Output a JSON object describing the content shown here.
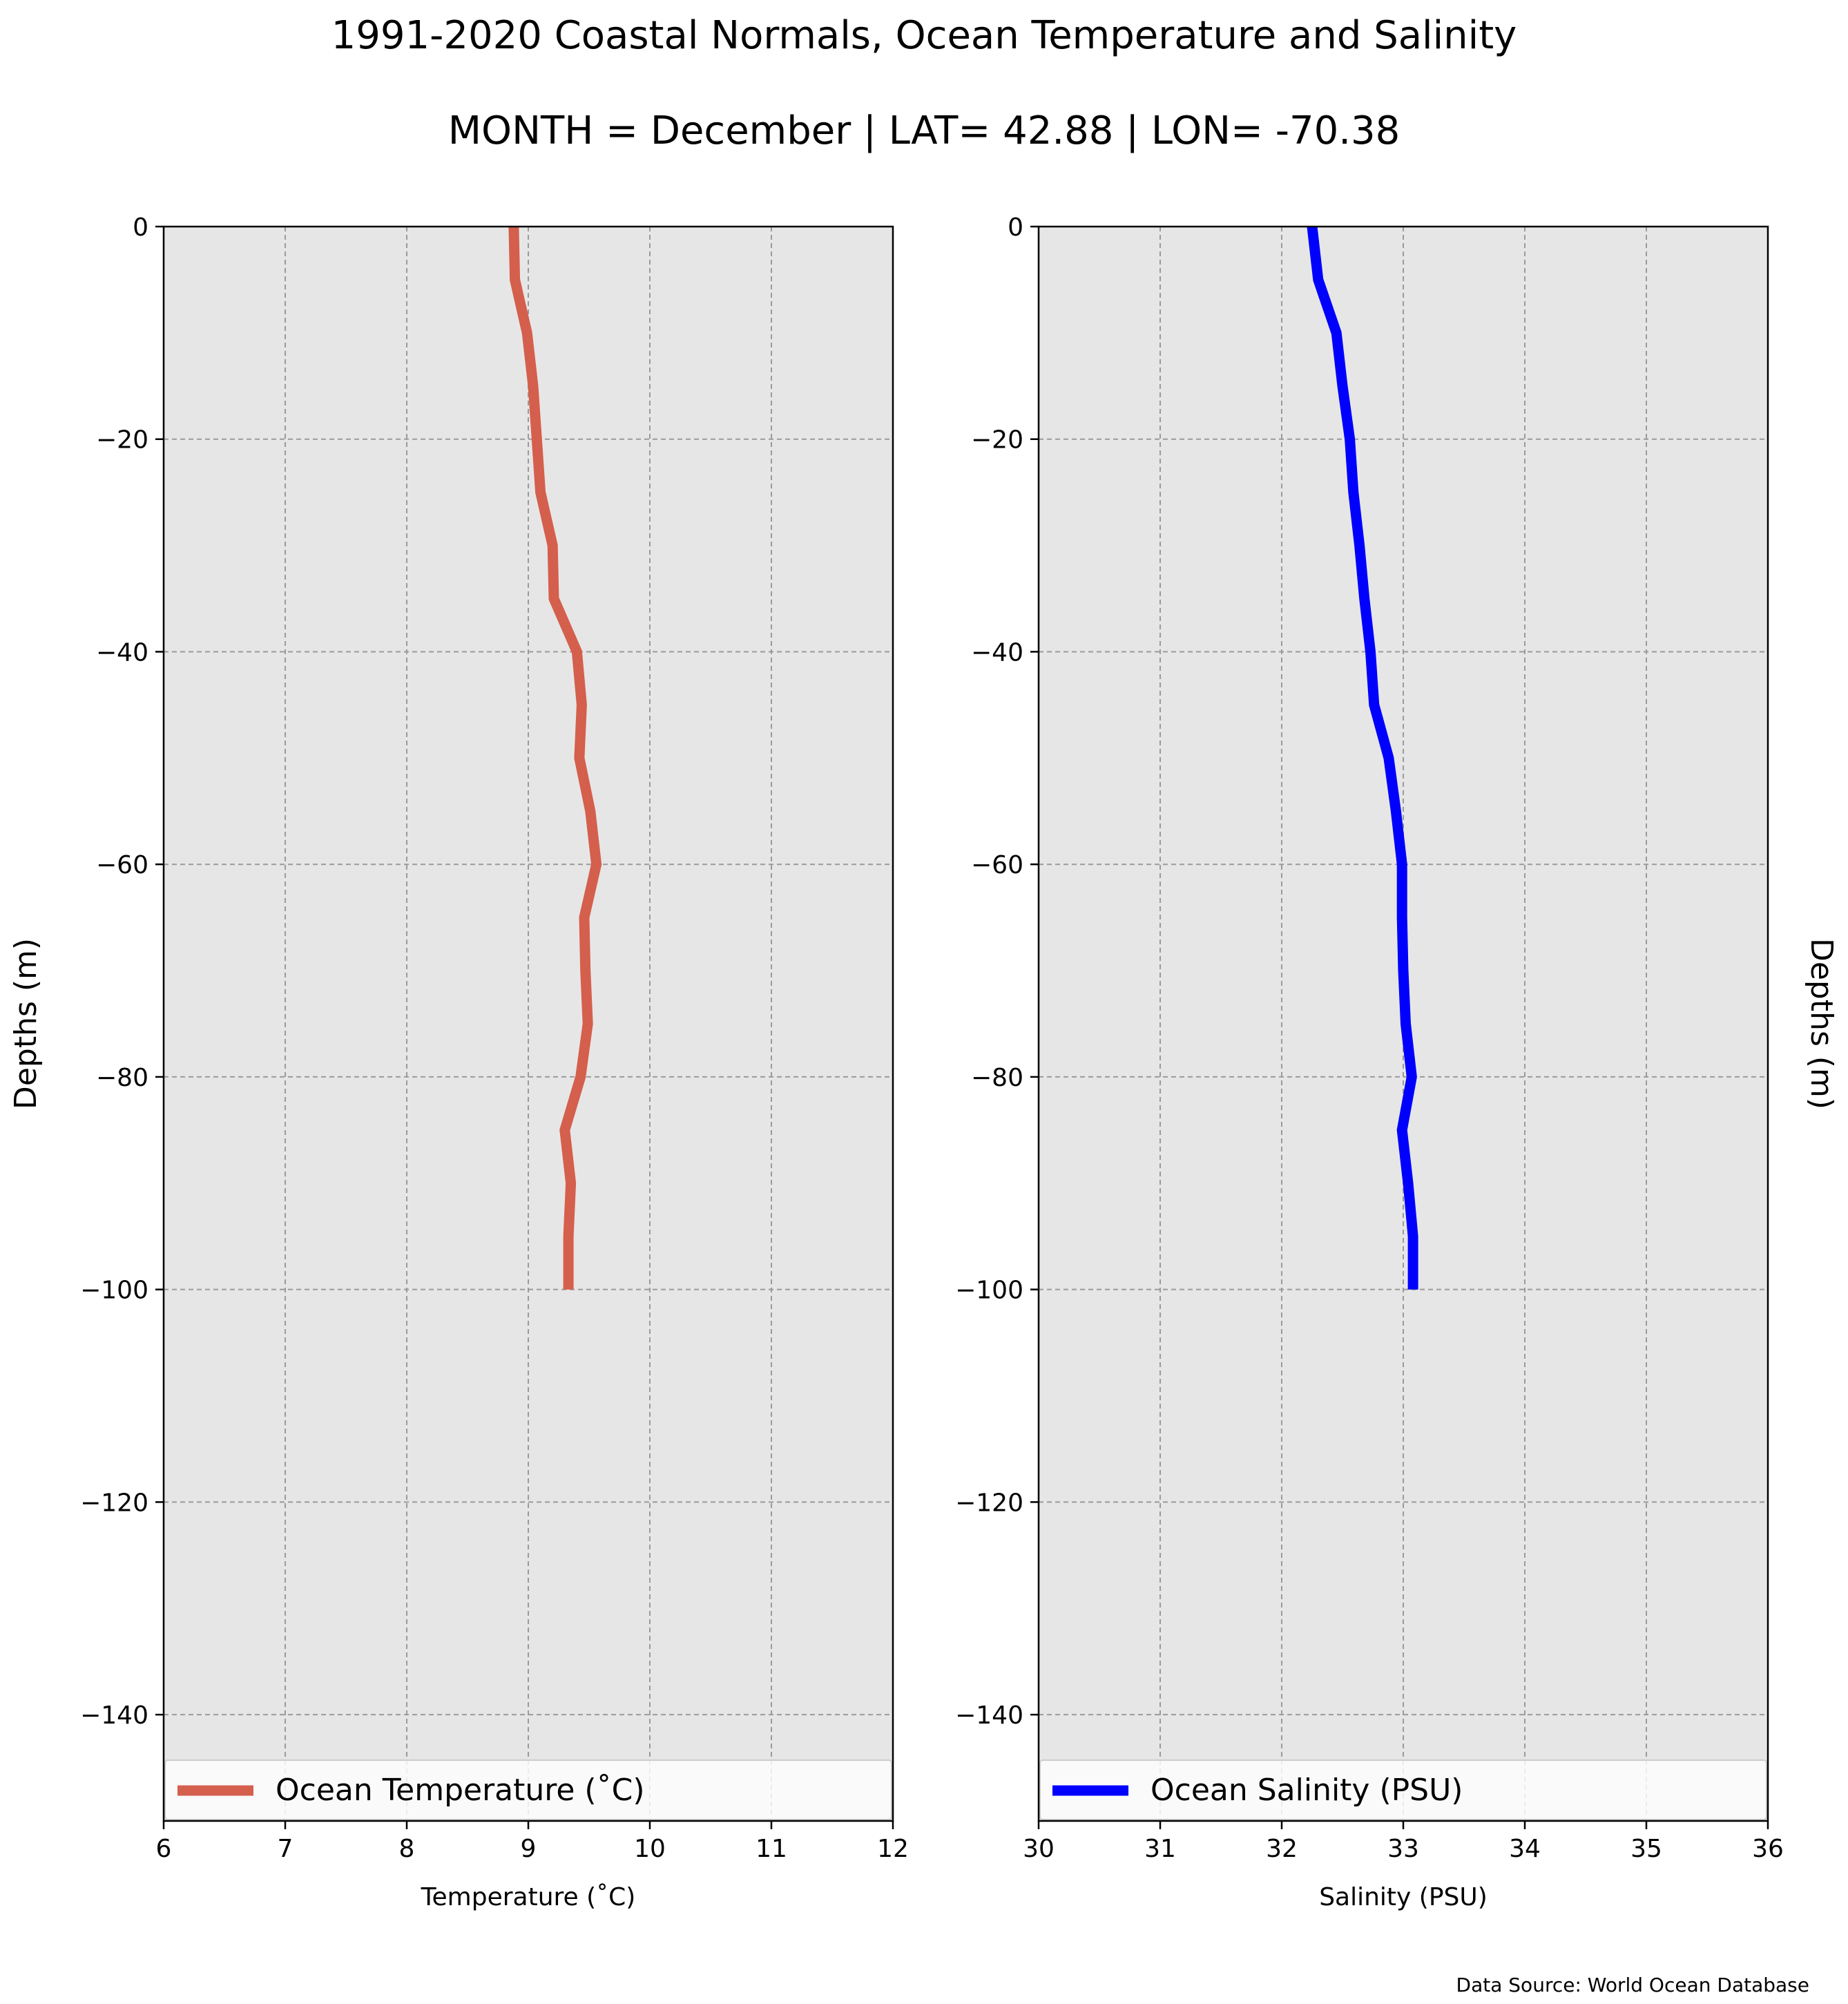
{
  "title": "1991-2020 Coastal Normals, Ocean Temperature and Salinity",
  "subtitle": "MONTH = December | LAT= 42.88 | LON= -70.38",
  "source": "Data Source: World Ocean Database",
  "chart_data": [
    {
      "type": "line",
      "orientation": "vertical-profile",
      "xlabel": "Temperature ($^\\circ$C)",
      "xlabel_display": "Temperature (˚C)",
      "ylabel": "Depths (m)",
      "xlim": [
        6,
        12
      ],
      "ylim": [
        -150,
        0
      ],
      "xticks": [
        "6",
        "7",
        "8",
        "9",
        "10",
        "11",
        "12"
      ],
      "yticks": [
        "0",
        "−20",
        "−40",
        "−60",
        "−80",
        "−100",
        "−120",
        "−140"
      ],
      "grid": true,
      "legend_position": "bottom",
      "color": "#d45f4d",
      "series": [
        {
          "name": "Ocean Temperature (˚C)",
          "depth": [
            0,
            -5,
            -10,
            -15,
            -20,
            -25,
            -30,
            -35,
            -40,
            -45,
            -50,
            -55,
            -60,
            -65,
            -70,
            -75,
            -80,
            -85,
            -90,
            -95,
            -100
          ],
          "values": [
            8.88,
            8.89,
            8.99,
            9.04,
            9.07,
            9.1,
            9.2,
            9.21,
            9.4,
            9.44,
            9.42,
            9.51,
            9.56,
            9.46,
            9.47,
            9.49,
            9.43,
            9.3,
            9.35,
            9.33,
            9.33
          ]
        }
      ]
    },
    {
      "type": "line",
      "orientation": "vertical-profile",
      "xlabel": "Salinity (PSU)",
      "ylabel": "Depths (m)",
      "ylabel_side": "right",
      "xlim": [
        30,
        36
      ],
      "ylim": [
        -150,
        0
      ],
      "xticks": [
        "30",
        "31",
        "32",
        "33",
        "34",
        "35",
        "36"
      ],
      "yticks": [
        "0",
        "−20",
        "−40",
        "−60",
        "−80",
        "−100",
        "−120",
        "−140"
      ],
      "grid": true,
      "legend_position": "bottom",
      "color": "#0000ff",
      "series": [
        {
          "name": "Ocean Salinity (PSU)",
          "depth": [
            0,
            -5,
            -10,
            -15,
            -20,
            -25,
            -30,
            -35,
            -40,
            -45,
            -50,
            -55,
            -60,
            -65,
            -70,
            -75,
            -80,
            -85,
            -90,
            -95,
            -100
          ],
          "values": [
            32.25,
            32.3,
            32.45,
            32.5,
            32.56,
            32.59,
            32.64,
            32.68,
            32.73,
            32.76,
            32.88,
            32.94,
            32.99,
            32.99,
            33.0,
            33.02,
            33.07,
            32.99,
            33.04,
            33.08,
            33.08
          ]
        }
      ]
    }
  ]
}
